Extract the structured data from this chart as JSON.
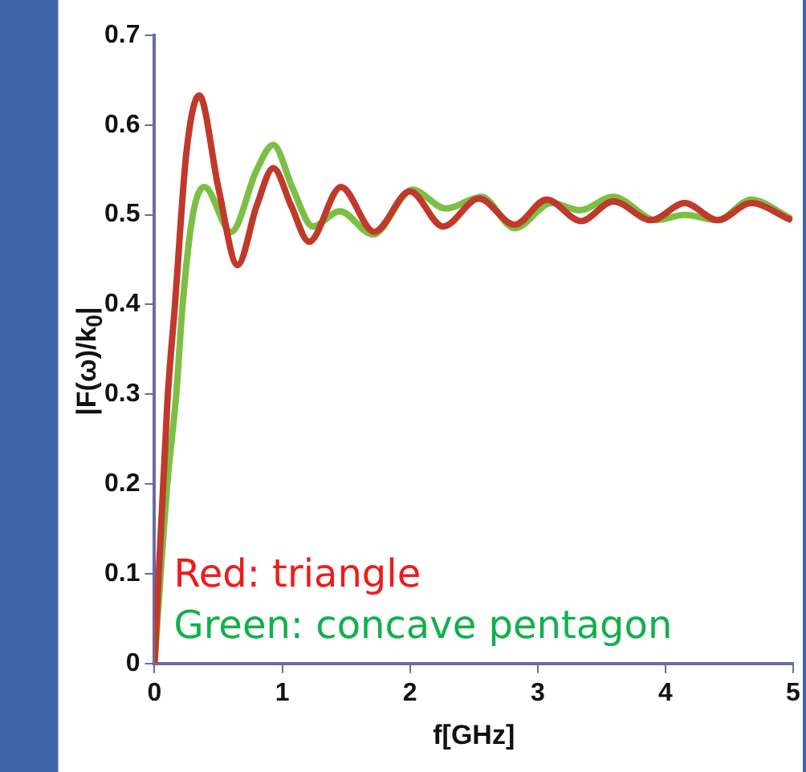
{
  "chart_data": {
    "type": "line",
    "xlabel": "f[GHz]",
    "ylabel": "|F(ω)/k$_{0}$|",
    "xlim": [
      0,
      5
    ],
    "ylim": [
      0,
      0.7
    ],
    "xticks": [
      0,
      1,
      2,
      3,
      4,
      5
    ],
    "yticks": [
      0,
      0.1,
      0.2,
      0.3,
      0.4,
      0.5,
      0.6,
      0.7
    ],
    "marker": "none",
    "line_style": "solid",
    "series": [
      {
        "name": "Red: triangle",
        "color": "#c0392b",
        "x": [
          0,
          0.1,
          0.16,
          0.25,
          0.35,
          0.5,
          0.65,
          0.8,
          0.93,
          1.07,
          1.21,
          1.46,
          1.72,
          2.0,
          2.26,
          2.54,
          2.82,
          3.07,
          3.34,
          3.59,
          3.89,
          4.15,
          4.41,
          4.67,
          4.97
        ],
        "values": [
          0,
          0.29,
          0.4,
          0.57,
          0.633,
          0.53,
          0.444,
          0.51,
          0.552,
          0.51,
          0.47,
          0.531,
          0.481,
          0.526,
          0.487,
          0.518,
          0.489,
          0.517,
          0.493,
          0.515,
          0.494,
          0.513,
          0.494,
          0.513,
          0.495
        ]
      },
      {
        "name": "Green: concave pentagon",
        "color": "#7cbf45",
        "x": [
          0,
          0.1,
          0.17,
          0.22,
          0.3,
          0.39,
          0.6,
          0.8,
          0.93,
          1.08,
          1.24,
          1.45,
          1.71,
          2.02,
          2.28,
          2.56,
          2.82,
          3.11,
          3.33,
          3.59,
          3.93,
          4.15,
          4.41,
          4.67,
          4.97
        ],
        "values": [
          0,
          0.2,
          0.3,
          0.4,
          0.5,
          0.531,
          0.481,
          0.55,
          0.578,
          0.53,
          0.487,
          0.504,
          0.478,
          0.528,
          0.507,
          0.52,
          0.485,
          0.513,
          0.505,
          0.52,
          0.494,
          0.5,
          0.494,
          0.517,
          0.497
        ]
      }
    ]
  }
}
